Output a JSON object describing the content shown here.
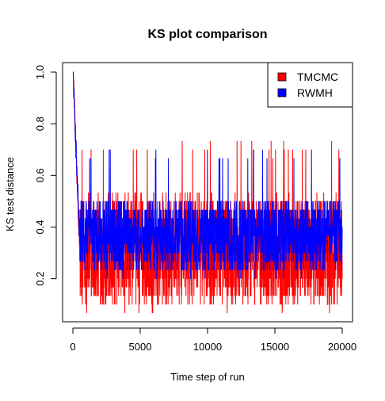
{
  "chart_data": {
    "type": "line",
    "title": "KS plot comparison",
    "xlabel": "Time step of run",
    "ylabel": "KS test distance",
    "xlim": [
      0,
      20000
    ],
    "ylim": [
      0.067,
      1.0
    ],
    "x_ticks": [
      "0",
      "5000",
      "10000",
      "15000",
      "20000"
    ],
    "y_ticks": [
      "0.2",
      "0.4",
      "0.6",
      "0.8",
      "1.0"
    ],
    "grid": false,
    "legend_position": "top-right",
    "series": [
      {
        "name": "TMCMC",
        "color": "#ff0000",
        "x_start": 0,
        "x_end": 20000,
        "start_value": 1.0,
        "steady_low": 0.1,
        "steady_high": 0.53,
        "occasional_min": 0.067,
        "occasional_max": 0.73
      },
      {
        "name": "RWMH",
        "color": "#0000ff",
        "x_start": 0,
        "x_end": 20000,
        "start_value": 1.0,
        "steady_low": 0.23,
        "steady_high": 0.5,
        "occasional_min": 0.2,
        "occasional_max": 0.7
      }
    ]
  }
}
